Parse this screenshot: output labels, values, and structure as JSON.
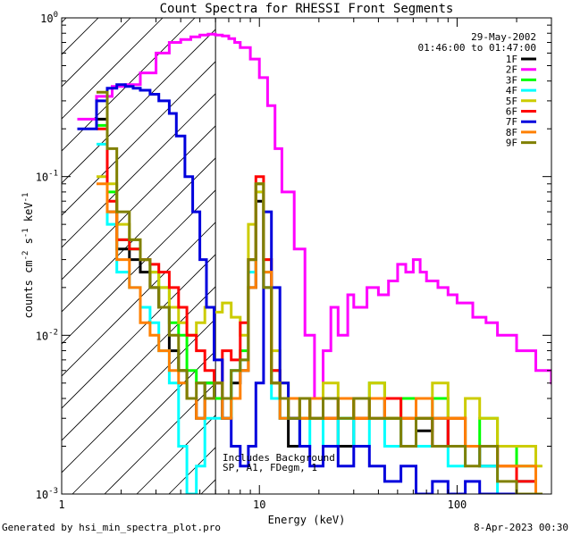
{
  "chart_data": {
    "type": "line",
    "title": "Count Spectra for RHESSI Front Segments",
    "xlabel": "Energy (keV)",
    "ylabel_parts": [
      "counts cm",
      "-2",
      " s",
      "-1",
      " keV",
      "-1"
    ],
    "xscale": "log",
    "yscale": "log",
    "xlim": [
      1,
      300
    ],
    "ylim": [
      0.001,
      1
    ],
    "x_ticks": [
      {
        "value": 1,
        "label": "1"
      },
      {
        "value": 10,
        "label": "10"
      },
      {
        "value": 100,
        "label": "100"
      }
    ],
    "y_ticks": [
      {
        "value": 1,
        "base": "10",
        "exp": "0"
      },
      {
        "value": 0.1,
        "base": "10",
        "exp": "-1"
      },
      {
        "value": 0.01,
        "base": "10",
        "exp": "-2"
      },
      {
        "value": 0.001,
        "base": "10",
        "exp": "-3"
      }
    ],
    "date": "29-May-2002",
    "time_range": "01:46:00 to 01:47:00",
    "annotation_lines": [
      "Includes Background",
      "SP, A1, FDegm, 1"
    ],
    "shaded_region": {
      "x_min": 1,
      "x_max": 6
    },
    "series": [
      {
        "name": "1F",
        "color": "#000000",
        "x": [
          1.5,
          1.7,
          1.9,
          2.2,
          2.5,
          2.8,
          3.1,
          3.5,
          3.9,
          4.3,
          4.8,
          5.3,
          5.9,
          6.5,
          7.2,
          8,
          8.8,
          9.6,
          10.5,
          11.5,
          12.7,
          14,
          16,
          18,
          21,
          25,
          30,
          36,
          43,
          52,
          62,
          75,
          90,
          110,
          130,
          160,
          200,
          250
        ],
        "y": [
          0.23,
          0.06,
          0.035,
          0.03,
          0.025,
          0.02,
          0.015,
          0.008,
          0.006,
          0.004,
          0.003,
          0.005,
          0.004,
          0.003,
          0.005,
          0.006,
          0.02,
          0.07,
          0.02,
          0.005,
          0.003,
          0.002,
          0.003,
          0.004,
          0.003,
          0.002,
          0.003,
          0.004,
          0.003,
          0.002,
          0.0025,
          0.003,
          0.002,
          0.002,
          0.0015,
          0.002,
          0.0012,
          0.001
        ]
      },
      {
        "name": "2F",
        "color": "#ff00ff",
        "x": [
          1.2,
          1.5,
          1.8,
          2.1,
          2.5,
          3,
          3.5,
          4,
          4.5,
          5,
          5.5,
          6,
          6.5,
          7,
          7.5,
          8,
          9,
          10,
          11,
          12,
          13,
          15,
          17,
          19,
          21,
          23,
          25,
          28,
          30,
          35,
          40,
          45,
          50,
          55,
          60,
          65,
          70,
          80,
          90,
          100,
          120,
          140,
          160,
          200,
          250,
          300
        ],
        "y": [
          0.23,
          0.32,
          0.37,
          0.38,
          0.45,
          0.6,
          0.7,
          0.73,
          0.76,
          0.78,
          0.79,
          0.78,
          0.77,
          0.74,
          0.7,
          0.65,
          0.55,
          0.42,
          0.28,
          0.15,
          0.08,
          0.035,
          0.01,
          0.004,
          0.008,
          0.015,
          0.01,
          0.018,
          0.015,
          0.02,
          0.018,
          0.022,
          0.028,
          0.025,
          0.03,
          0.025,
          0.022,
          0.02,
          0.018,
          0.016,
          0.013,
          0.012,
          0.01,
          0.008,
          0.006,
          0.005
        ]
      },
      {
        "name": "3F",
        "color": "#00ff00",
        "x": [
          1.5,
          1.7,
          1.9,
          2.2,
          2.5,
          2.8,
          3.1,
          3.5,
          3.9,
          4.3,
          4.8,
          5.3,
          5.9,
          6.5,
          7.2,
          8,
          8.8,
          9.6,
          10.5,
          11.5,
          12.7,
          14,
          16,
          18,
          21,
          25,
          30,
          36,
          43,
          52,
          62,
          75,
          90,
          110,
          130,
          160,
          200,
          250
        ],
        "y": [
          0.21,
          0.08,
          0.04,
          0.035,
          0.03,
          0.025,
          0.02,
          0.012,
          0.01,
          0.006,
          0.005,
          0.005,
          0.004,
          0.003,
          0.006,
          0.008,
          0.03,
          0.09,
          0.025,
          0.006,
          0.004,
          0.003,
          0.004,
          0.003,
          0.004,
          0.003,
          0.004,
          0.005,
          0.003,
          0.004,
          0.003,
          0.004,
          0.003,
          0.002,
          0.003,
          0.002,
          0.0015,
          0.001
        ]
      },
      {
        "name": "4F",
        "color": "#00ffff",
        "x": [
          1.5,
          1.7,
          1.9,
          2.2,
          2.5,
          2.8,
          3.1,
          3.5,
          3.9,
          4.3,
          4.8,
          5.3,
          5.9,
          6.5,
          7.2,
          8,
          8.8,
          9.6,
          10.5,
          11.5,
          12.7,
          14,
          16,
          18,
          21,
          25,
          30,
          36,
          43,
          52,
          62,
          75,
          90,
          110,
          130,
          160,
          200,
          250
        ],
        "y": [
          0.16,
          0.05,
          0.025,
          0.02,
          0.015,
          0.012,
          0.008,
          0.005,
          0.002,
          0.001,
          0.0015,
          0.003,
          0.003,
          0.003,
          0.006,
          0.007,
          0.025,
          0.08,
          0.02,
          0.004,
          0.003,
          0.003,
          0.002,
          0.003,
          0.002,
          0.003,
          0.002,
          0.003,
          0.002,
          0.003,
          0.002,
          0.002,
          0.0015,
          0.002,
          0.0015,
          0.001,
          0.0012,
          0.001
        ]
      },
      {
        "name": "5F",
        "color": "#cccc00",
        "x": [
          1.5,
          1.7,
          1.9,
          2.2,
          2.5,
          2.8,
          3.1,
          3.5,
          3.9,
          4.3,
          4.8,
          5.3,
          5.9,
          6.5,
          7.2,
          8,
          8.8,
          9.6,
          10.5,
          11.5,
          12.7,
          14,
          16,
          18,
          21,
          25,
          30,
          36,
          43,
          52,
          62,
          75,
          90,
          110,
          130,
          160,
          200,
          250
        ],
        "y": [
          0.1,
          0.09,
          0.05,
          0.04,
          0.03,
          0.025,
          0.02,
          0.015,
          0.012,
          0.01,
          0.012,
          0.015,
          0.014,
          0.016,
          0.013,
          0.01,
          0.05,
          0.08,
          0.03,
          0.008,
          0.005,
          0.004,
          0.003,
          0.004,
          0.005,
          0.004,
          0.003,
          0.005,
          0.004,
          0.003,
          0.004,
          0.005,
          0.003,
          0.004,
          0.003,
          0.002,
          0.002,
          0.0015
        ]
      },
      {
        "name": "6F",
        "color": "#ff0000",
        "x": [
          1.5,
          1.7,
          1.9,
          2.2,
          2.5,
          2.8,
          3.1,
          3.5,
          3.9,
          4.3,
          4.8,
          5.3,
          5.9,
          6.5,
          7.2,
          8,
          8.8,
          9.6,
          10.5,
          11.5,
          12.7,
          14,
          16,
          18,
          21,
          25,
          30,
          36,
          43,
          52,
          62,
          75,
          90,
          110,
          130,
          160,
          200,
          250
        ],
        "y": [
          0.2,
          0.07,
          0.04,
          0.035,
          0.03,
          0.028,
          0.025,
          0.02,
          0.015,
          0.01,
          0.008,
          0.006,
          0.005,
          0.008,
          0.007,
          0.012,
          0.03,
          0.1,
          0.03,
          0.006,
          0.004,
          0.003,
          0.004,
          0.003,
          0.003,
          0.004,
          0.003,
          0.003,
          0.004,
          0.003,
          0.003,
          0.002,
          0.003,
          0.002,
          0.002,
          0.0015,
          0.0012,
          0.001
        ]
      },
      {
        "name": "7F",
        "color": "#0000dd",
        "x": [
          1.2,
          1.5,
          1.7,
          1.9,
          2.1,
          2.3,
          2.5,
          2.8,
          3.1,
          3.5,
          3.8,
          4.2,
          4.6,
          5,
          5.4,
          5.9,
          6.5,
          7.2,
          8,
          8.8,
          9.6,
          10.5,
          11.5,
          12.7,
          14,
          16,
          18,
          21,
          25,
          30,
          36,
          43,
          52,
          62,
          75,
          90,
          110,
          130,
          160,
          200,
          250
        ],
        "y": [
          0.2,
          0.3,
          0.36,
          0.38,
          0.37,
          0.36,
          0.35,
          0.33,
          0.3,
          0.25,
          0.18,
          0.1,
          0.06,
          0.03,
          0.015,
          0.007,
          0.003,
          0.002,
          0.0015,
          0.002,
          0.005,
          0.06,
          0.02,
          0.005,
          0.003,
          0.002,
          0.0015,
          0.002,
          0.0015,
          0.002,
          0.0015,
          0.0012,
          0.0015,
          0.001,
          0.0012,
          0.001,
          0.0012,
          0.001,
          0.001,
          0.001,
          0.001
        ]
      },
      {
        "name": "8F",
        "color": "#ff8000",
        "x": [
          1.5,
          1.7,
          1.9,
          2.2,
          2.5,
          2.8,
          3.1,
          3.5,
          3.9,
          4.3,
          4.8,
          5.3,
          5.9,
          6.5,
          7.2,
          8,
          8.8,
          9.6,
          10.5,
          11.5,
          12.7,
          14,
          16,
          18,
          21,
          25,
          30,
          36,
          43,
          52,
          62,
          75,
          90,
          110,
          130,
          160,
          200,
          250
        ],
        "y": [
          0.09,
          0.06,
          0.03,
          0.02,
          0.012,
          0.01,
          0.008,
          0.006,
          0.005,
          0.004,
          0.003,
          0.004,
          0.005,
          0.003,
          0.004,
          0.006,
          0.02,
          0.09,
          0.025,
          0.005,
          0.003,
          0.004,
          0.003,
          0.004,
          0.003,
          0.004,
          0.003,
          0.004,
          0.003,
          0.003,
          0.004,
          0.003,
          0.003,
          0.002,
          0.002,
          0.0015,
          0.0015,
          0.001
        ]
      },
      {
        "name": "9F",
        "color": "#808000",
        "x": [
          1.5,
          1.7,
          1.9,
          2.2,
          2.5,
          2.8,
          3.1,
          3.5,
          3.9,
          4.3,
          4.8,
          5.3,
          5.9,
          6.5,
          7.2,
          8,
          8.8,
          9.6,
          10.5,
          11.5,
          12.7,
          14,
          16,
          18,
          21,
          25,
          30,
          36,
          43,
          52,
          62,
          75,
          90,
          110,
          130,
          160,
          200,
          250
        ],
        "y": [
          0.34,
          0.15,
          0.06,
          0.04,
          0.03,
          0.02,
          0.015,
          0.01,
          0.006,
          0.004,
          0.005,
          0.004,
          0.005,
          0.004,
          0.006,
          0.007,
          0.03,
          0.09,
          0.02,
          0.005,
          0.004,
          0.003,
          0.004,
          0.003,
          0.004,
          0.003,
          0.004,
          0.003,
          0.003,
          0.002,
          0.003,
          0.002,
          0.002,
          0.0015,
          0.002,
          0.0012,
          0.001,
          0.001
        ]
      }
    ]
  },
  "footer": {
    "generated_by": "Generated by hsi_min_spectra_plot.pro",
    "timestamp": "8-Apr-2023 00:30"
  }
}
